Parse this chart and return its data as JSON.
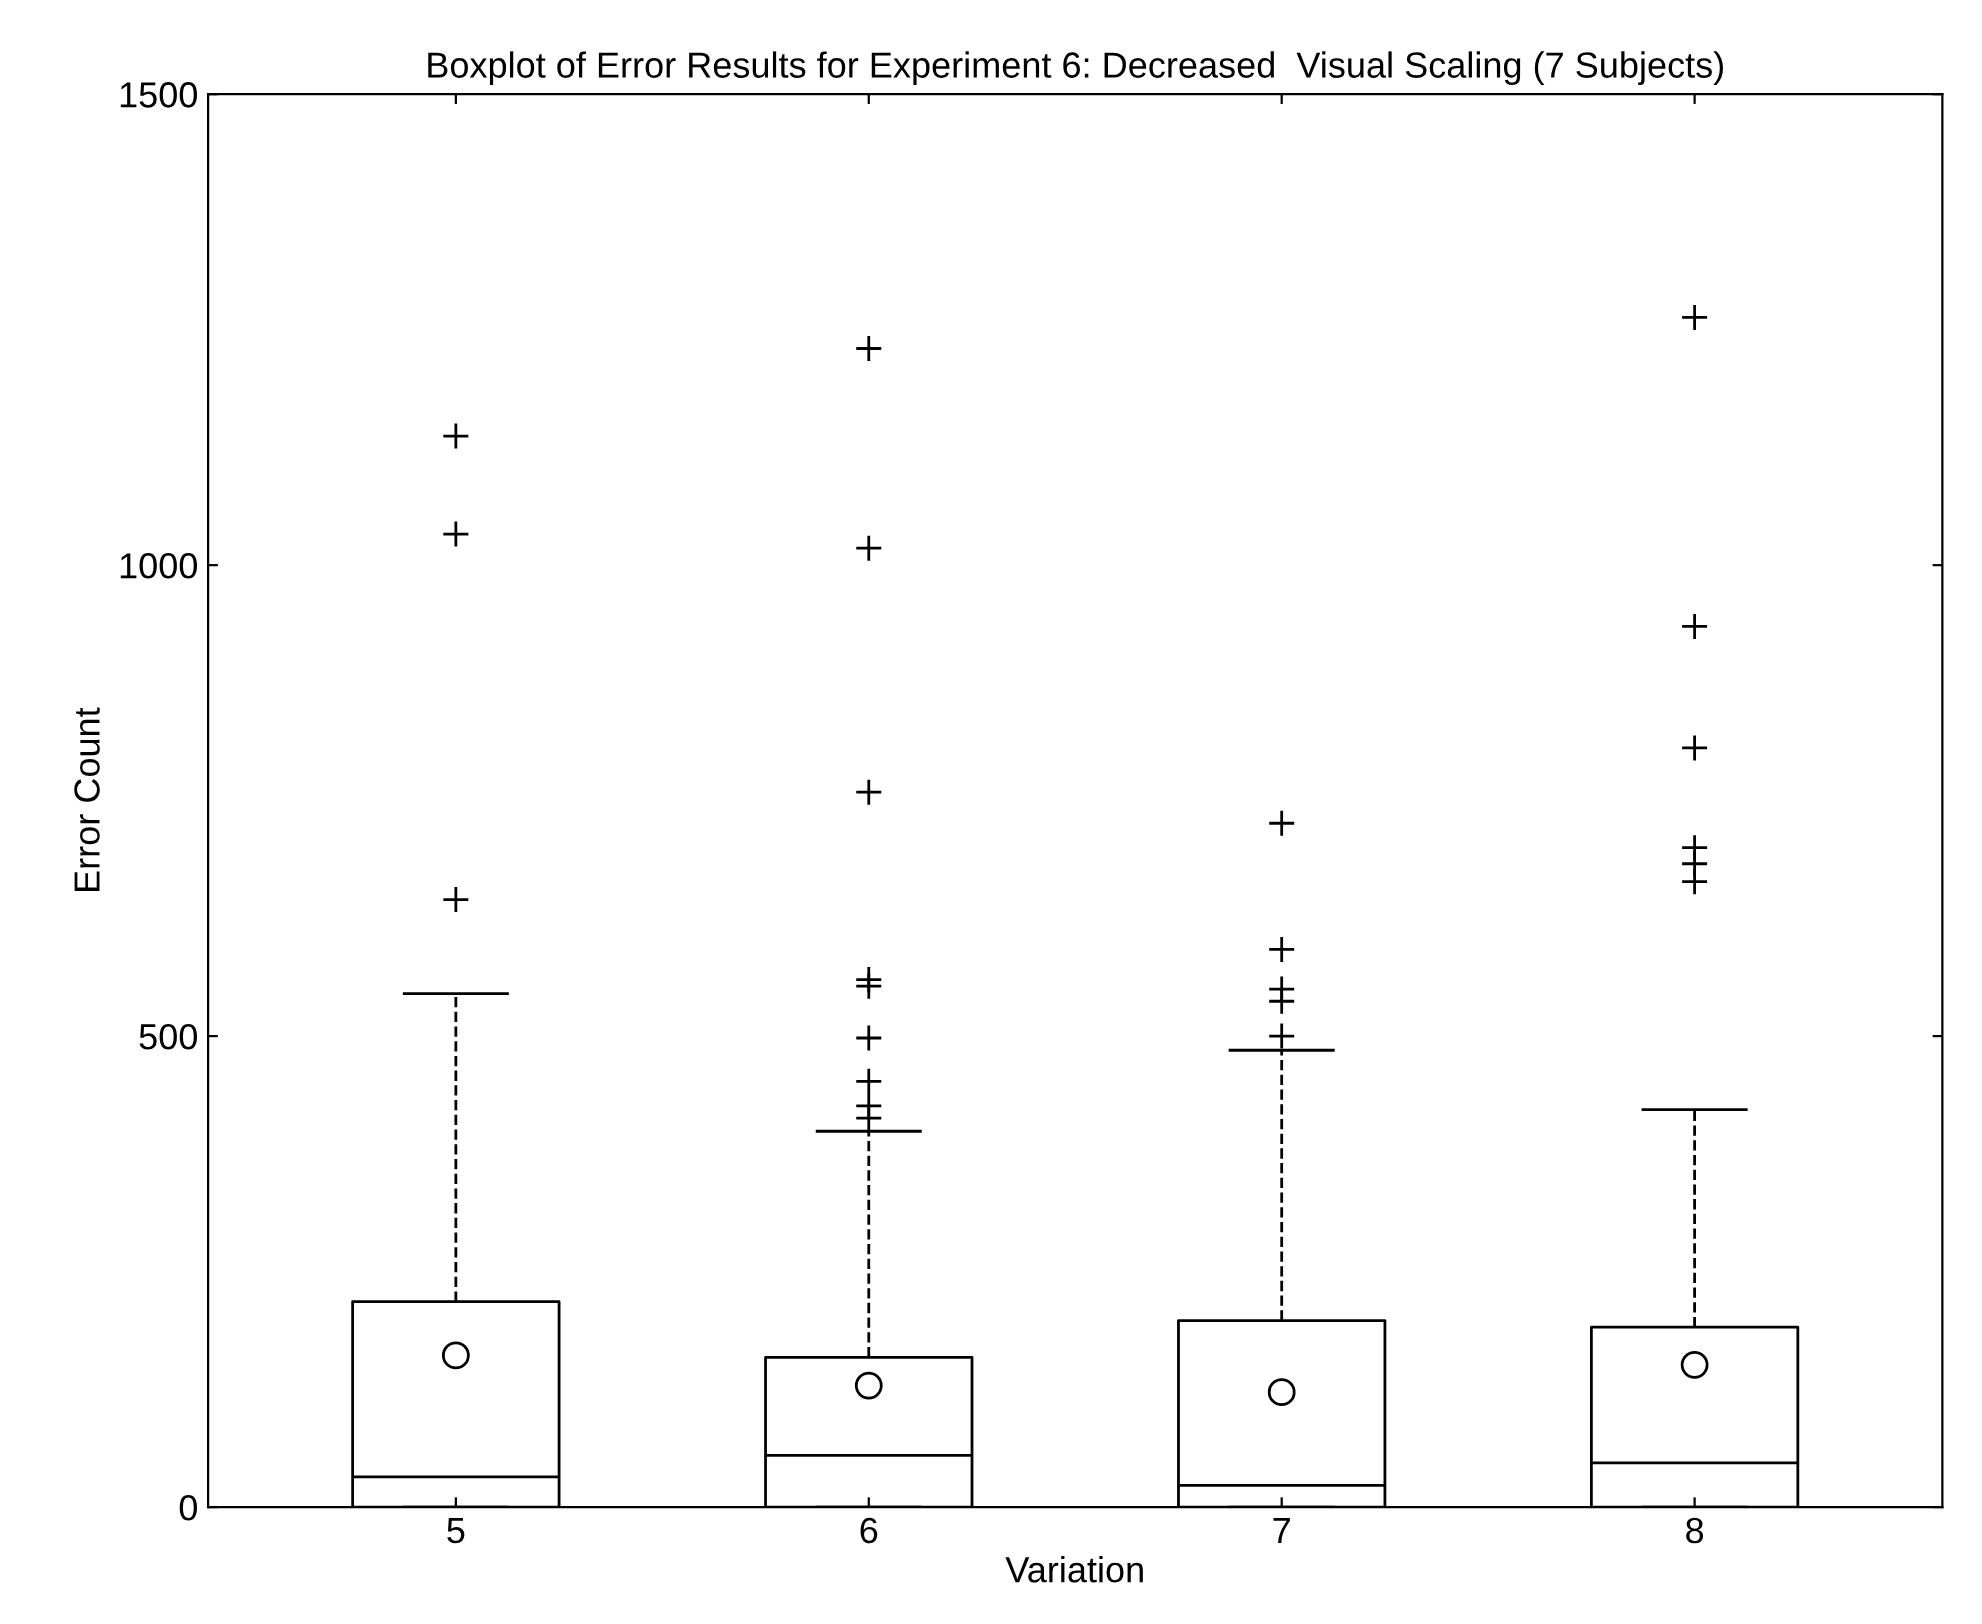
{
  "chart_data": {
    "type": "box",
    "title": "Boxplot of Error Results for Experiment 6: Decreased  Visual Scaling (7 Subjects)",
    "xlabel": "Variation",
    "ylabel": "Error Count",
    "categories": [
      "5",
      "6",
      "7",
      "8"
    ],
    "boxes": [
      {
        "low": 0,
        "q1": 0,
        "median": 32,
        "q3": 218,
        "high": 545,
        "mean": 161,
        "outliers": [
          1137,
          1033,
          645
        ]
      },
      {
        "low": 0,
        "q1": 0,
        "median": 55,
        "q3": 159,
        "high": 399,
        "mean": 129,
        "outliers": [
          1230,
          1018,
          759,
          560,
          553,
          498,
          452,
          426,
          413
        ]
      },
      {
        "low": 0,
        "q1": 0,
        "median": 23,
        "q3": 198,
        "high": 485,
        "mean": 122,
        "outliers": [
          726,
          592,
          550,
          537,
          500
        ]
      },
      {
        "low": 0,
        "q1": 0,
        "median": 47,
        "q3": 191,
        "high": 422,
        "mean": 151,
        "outliers": [
          1263,
          935,
          806,
          700,
          683,
          664
        ]
      }
    ],
    "color": "#000000",
    "ylim": [
      0,
      1500
    ],
    "yticks": [
      0,
      500,
      1000,
      1500
    ],
    "grid": false
  }
}
